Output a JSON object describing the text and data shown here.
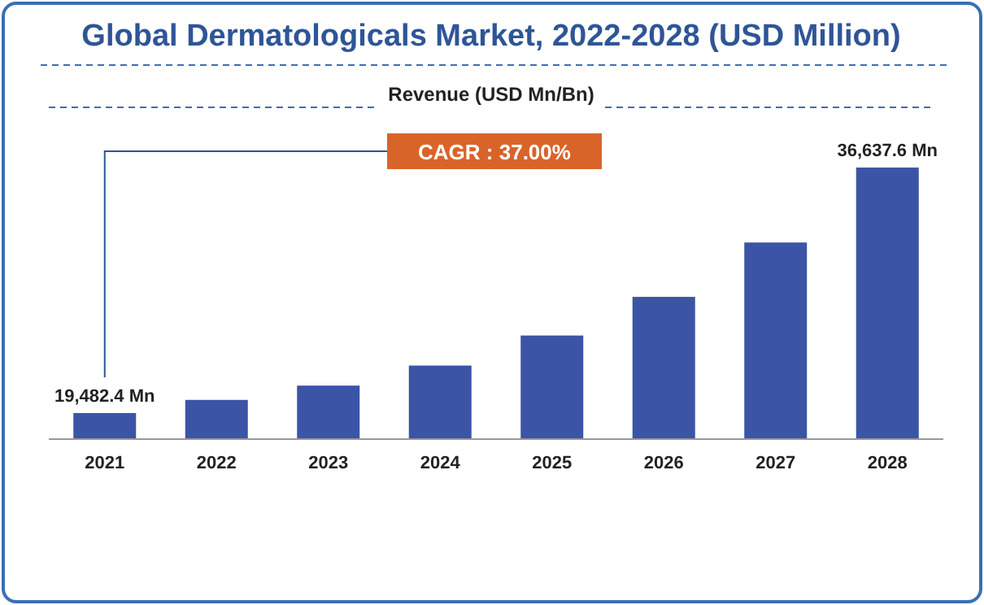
{
  "chart_data": {
    "type": "bar",
    "title": "Global Dermatologicals Market, 2022-2028 (USD Million)",
    "subtitle": "Revenue (USD Mn/Bn)",
    "categories": [
      "2021",
      "2022",
      "2023",
      "2024",
      "2025",
      "2026",
      "2027",
      "2028"
    ],
    "values": [
      19482.4,
      20400,
      21400,
      22800,
      24900,
      27600,
      31400,
      36637.6
    ],
    "value_labels": [
      "19,482.4 Mn",
      null,
      null,
      null,
      null,
      null,
      null,
      "36,637.6 Mn"
    ],
    "color": "#3b54a5",
    "ylim": [
      17660,
      37550
    ],
    "tick_labels": "x",
    "annotations": [
      "CAGR : 37.00%"
    ]
  }
}
